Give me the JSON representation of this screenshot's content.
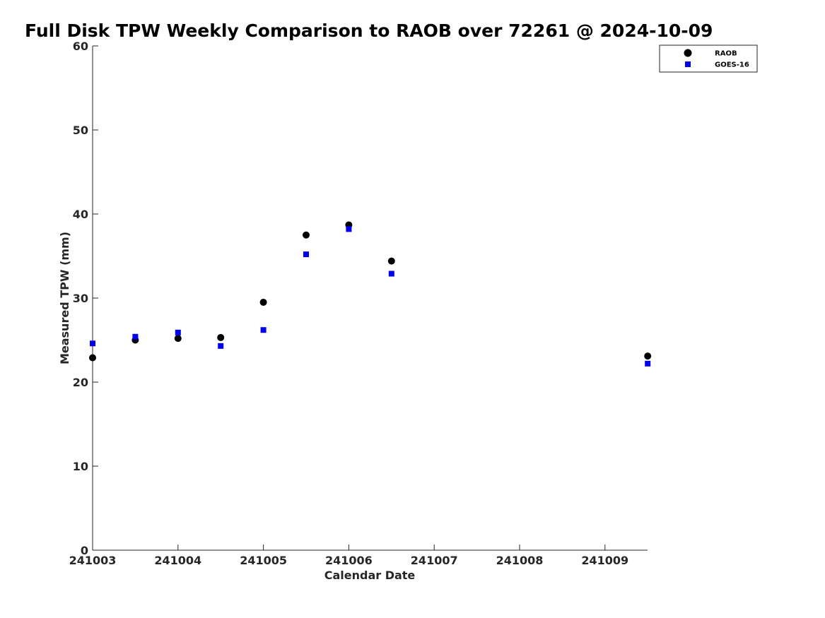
{
  "chart_data": {
    "type": "scatter",
    "title": "Full Disk TPW Weekly Comparison to RAOB over 72261 @ 2024-10-09",
    "xlabel": "Calendar Date",
    "ylabel": "Measured TPW (mm)",
    "xlim": [
      "241003",
      "241009.5"
    ],
    "ylim": [
      0,
      60
    ],
    "x_ticks": [
      "241003",
      "241004",
      "241005",
      "241006",
      "241007",
      "241008",
      "241009"
    ],
    "y_ticks": [
      "0",
      "10",
      "20",
      "30",
      "40",
      "50",
      "60"
    ],
    "grid": false,
    "legend_position": "top-right",
    "series": [
      {
        "name": "RAOB",
        "marker": "circle",
        "color": "#000000",
        "points": [
          {
            "x": "2024-10-03 00Z",
            "y": 22.9
          },
          {
            "x": "2024-10-03 12Z",
            "y": 25.0
          },
          {
            "x": "2024-10-04 00Z",
            "y": 25.2
          },
          {
            "x": "2024-10-04 12Z",
            "y": 25.3
          },
          {
            "x": "2024-10-05 00Z",
            "y": 29.5
          },
          {
            "x": "2024-10-05 12Z",
            "y": 37.5
          },
          {
            "x": "2024-10-06 00Z",
            "y": 38.7
          },
          {
            "x": "2024-10-06 12Z",
            "y": 34.4
          },
          {
            "x": "2024-10-09 12Z",
            "y": 23.1
          }
        ]
      },
      {
        "name": "GOES-16",
        "marker": "square",
        "color": "#0000ee",
        "points": [
          {
            "x": "2024-10-03 00Z",
            "y": 24.6
          },
          {
            "x": "2024-10-03 12Z",
            "y": 25.4
          },
          {
            "x": "2024-10-04 00Z",
            "y": 25.9
          },
          {
            "x": "2024-10-04 12Z",
            "y": 24.3
          },
          {
            "x": "2024-10-05 00Z",
            "y": 26.2
          },
          {
            "x": "2024-10-05 12Z",
            "y": 35.2
          },
          {
            "x": "2024-10-06 00Z",
            "y": 38.2
          },
          {
            "x": "2024-10-06 12Z",
            "y": 32.9
          },
          {
            "x": "2024-10-09 12Z",
            "y": 22.2
          }
        ]
      }
    ]
  }
}
